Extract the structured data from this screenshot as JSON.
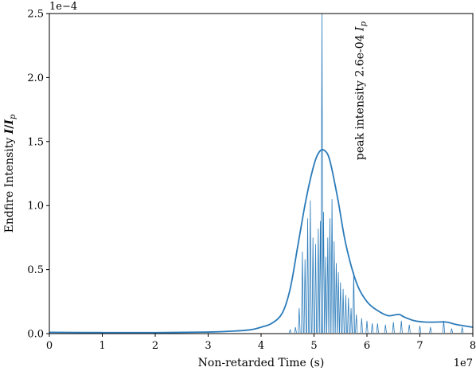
{
  "chart_data": {
    "type": "line",
    "title": "",
    "xlabel": "Non-retarded Time (s)",
    "ylabel": "Endfire Intensity I/I_p",
    "ylabel_parts": {
      "prefix": "Endfire Intensity ",
      "var": "I",
      "slash": "/",
      "sub_var": "I",
      "sub": "p"
    },
    "x_scale_label": "1e7",
    "y_scale_label": "1e−4",
    "xlim": [
      0,
      8
    ],
    "ylim": [
      0,
      2.5
    ],
    "x_ticks": [
      "0",
      "1",
      "2",
      "3",
      "4",
      "5",
      "6",
      "7",
      "8"
    ],
    "y_ticks": [
      "0.0",
      "0.5",
      "1.0",
      "1.5",
      "2.0",
      "2.5"
    ],
    "grid": false,
    "annotation": {
      "text": "peak intensity 2.6e-04 ",
      "var": "I",
      "sub": "p",
      "x": 5.3,
      "y": 2.5
    },
    "series": [
      {
        "color": "#2b7bba",
        "style": "envelope",
        "x": [
          0,
          1,
          2,
          3,
          3.5,
          3.8,
          4.0,
          4.2,
          4.4,
          4.55,
          4.7,
          4.85,
          5.0,
          5.1,
          5.2,
          5.3,
          5.45,
          5.6,
          5.8,
          6.0,
          6.2,
          6.4,
          6.6,
          6.7,
          6.9,
          7.1,
          7.3,
          7.5,
          7.7,
          8.0
        ],
        "values": [
          0.01,
          0.008,
          0.008,
          0.012,
          0.02,
          0.03,
          0.05,
          0.08,
          0.16,
          0.35,
          0.7,
          1.05,
          1.32,
          1.42,
          1.43,
          1.35,
          1.05,
          0.7,
          0.4,
          0.25,
          0.18,
          0.14,
          0.15,
          0.13,
          0.1,
          0.09,
          0.09,
          0.09,
          0.07,
          0.05
        ]
      },
      {
        "color": "#2b7bba",
        "style": "spikes",
        "x": [
          4.55,
          4.65,
          4.72,
          4.78,
          4.83,
          4.88,
          4.93,
          4.98,
          5.03,
          5.08,
          5.12,
          5.15,
          5.18,
          5.22,
          5.26,
          5.3,
          5.34,
          5.38,
          5.42,
          5.46,
          5.5,
          5.55,
          5.6,
          5.65,
          5.7,
          5.75,
          5.8,
          5.9,
          6.0,
          6.1,
          6.2,
          6.35,
          6.5,
          6.65,
          6.8,
          7.0,
          7.2,
          7.45,
          7.6,
          7.8
        ],
        "values": [
          0.03,
          0.05,
          0.2,
          0.64,
          0.58,
          0.9,
          1.04,
          0.75,
          0.7,
          0.82,
          0.88,
          2.6,
          0.95,
          0.6,
          0.75,
          0.9,
          1.05,
          0.72,
          0.55,
          0.48,
          0.4,
          0.35,
          0.3,
          0.28,
          0.2,
          0.48,
          0.15,
          0.12,
          0.1,
          0.08,
          0.08,
          0.07,
          0.09,
          0.1,
          0.07,
          0.06,
          0.05,
          0.1,
          0.04,
          0.05
        ]
      }
    ]
  }
}
